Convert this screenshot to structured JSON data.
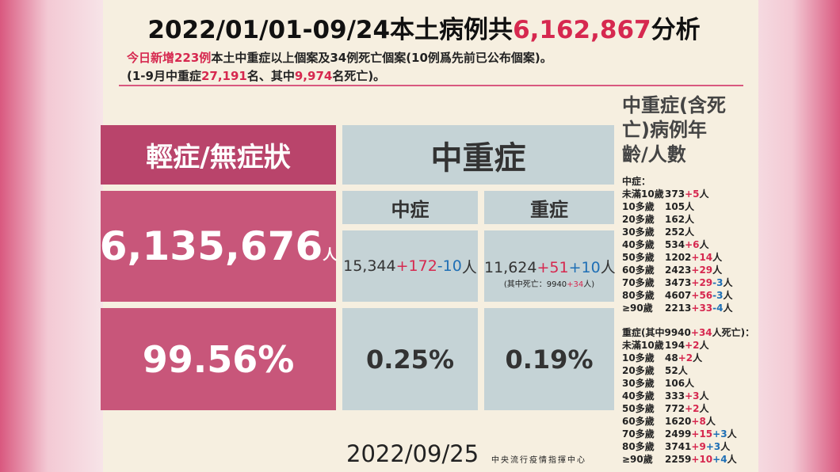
{
  "header": {
    "title": [
      {
        "text": "2022/01/01-09/24本土病例共",
        "color": "#111111"
      },
      {
        "text": "6,162,867",
        "color": "#d6284f"
      },
      {
        "text": "分析",
        "color": "#111111"
      }
    ],
    "line1": [
      {
        "text": "今日新增223例",
        "color": "#d6284f"
      },
      {
        "text": "本土中重症以上個案及34例死亡個案(10例爲先前已公布個案)。",
        "color": "#222222"
      }
    ],
    "line2": [
      {
        "text": "(1-9月中重症",
        "color": "#222222"
      },
      {
        "text": "27,191",
        "color": "#d6284f"
      },
      {
        "text": "名、其中",
        "color": "#222222"
      },
      {
        "text": "9,974",
        "color": "#d6284f"
      },
      {
        "text": "名死亡)。",
        "color": "#222222"
      }
    ]
  },
  "mild": {
    "title": "輕症/無症狀",
    "count": "6,135,676",
    "unit": "人",
    "percent": "99.56%"
  },
  "severe": {
    "title": "中重症",
    "moderate": {
      "title": "中症",
      "value": [
        {
          "text": "15,344",
          "color": "#333333"
        },
        {
          "text": "+172",
          "color": "#d6284f"
        },
        {
          "text": "-10",
          "color": "#1f6fb5"
        },
        {
          "text": "人",
          "color": "#333333"
        }
      ],
      "percent": "0.25%"
    },
    "critical": {
      "title": "重症",
      "value": [
        {
          "text": "11,624",
          "color": "#333333"
        },
        {
          "text": "+51",
          "color": "#d6284f"
        },
        {
          "text": "+10",
          "color": "#1f6fb5"
        },
        {
          "text": "人",
          "color": "#333333"
        }
      ],
      "note": [
        {
          "text": "(其中死亡：9940",
          "color": "#222222"
        },
        {
          "text": "+34",
          "color": "#d6284f"
        },
        {
          "text": "人)",
          "color": "#222222"
        }
      ],
      "percent": "0.19%"
    }
  },
  "sidebar": {
    "title": "中重症(含死亡)病例年齡/人數",
    "moderate_heading": [
      {
        "text": "中症：",
        "color": "#222222"
      }
    ],
    "moderate_rows": [
      {
        "age": "未滿10歲",
        "parts": [
          {
            "text": "373",
            "color": "#222222"
          },
          {
            "text": "+5",
            "color": "#d6284f"
          },
          {
            "text": "人",
            "color": "#222222"
          }
        ]
      },
      {
        "age": "10多歲",
        "parts": [
          {
            "text": "105人",
            "color": "#222222"
          }
        ]
      },
      {
        "age": "20多歲",
        "parts": [
          {
            "text": "162人",
            "color": "#222222"
          }
        ]
      },
      {
        "age": "30多歲",
        "parts": [
          {
            "text": "252人",
            "color": "#222222"
          }
        ]
      },
      {
        "age": "40多歲",
        "parts": [
          {
            "text": "534",
            "color": "#222222"
          },
          {
            "text": "+6",
            "color": "#d6284f"
          },
          {
            "text": "人",
            "color": "#222222"
          }
        ]
      },
      {
        "age": "50多歲",
        "parts": [
          {
            "text": "1202",
            "color": "#222222"
          },
          {
            "text": "+14",
            "color": "#d6284f"
          },
          {
            "text": "人",
            "color": "#222222"
          }
        ]
      },
      {
        "age": "60多歲",
        "parts": [
          {
            "text": "2423",
            "color": "#222222"
          },
          {
            "text": "+29",
            "color": "#d6284f"
          },
          {
            "text": "人",
            "color": "#222222"
          }
        ]
      },
      {
        "age": "70多歲",
        "parts": [
          {
            "text": "3473",
            "color": "#222222"
          },
          {
            "text": "+29",
            "color": "#d6284f"
          },
          {
            "text": "-3",
            "color": "#1f6fb5"
          },
          {
            "text": "人",
            "color": "#222222"
          }
        ]
      },
      {
        "age": "80多歲",
        "parts": [
          {
            "text": "4607",
            "color": "#222222"
          },
          {
            "text": "+56",
            "color": "#d6284f"
          },
          {
            "text": "-3",
            "color": "#1f6fb5"
          },
          {
            "text": "人",
            "color": "#222222"
          }
        ]
      },
      {
        "age": "≥90歲",
        "parts": [
          {
            "text": "2213",
            "color": "#222222"
          },
          {
            "text": "+33",
            "color": "#d6284f"
          },
          {
            "text": "-4",
            "color": "#1f6fb5"
          },
          {
            "text": "人",
            "color": "#222222"
          }
        ]
      }
    ],
    "critical_heading": [
      {
        "text": "重症(其中9940",
        "color": "#222222"
      },
      {
        "text": "+34",
        "color": "#d6284f"
      },
      {
        "text": "人死亡)：",
        "color": "#222222"
      }
    ],
    "critical_rows": [
      {
        "age": "未滿10歲",
        "parts": [
          {
            "text": "194",
            "color": "#222222"
          },
          {
            "text": "+2",
            "color": "#d6284f"
          },
          {
            "text": "人",
            "color": "#222222"
          }
        ]
      },
      {
        "age": "10多歲",
        "parts": [
          {
            "text": "48",
            "color": "#222222"
          },
          {
            "text": "+2",
            "color": "#d6284f"
          },
          {
            "text": "人",
            "color": "#222222"
          }
        ]
      },
      {
        "age": "20多歲",
        "parts": [
          {
            "text": "52人",
            "color": "#222222"
          }
        ]
      },
      {
        "age": "30多歲",
        "parts": [
          {
            "text": "106人",
            "color": "#222222"
          }
        ]
      },
      {
        "age": "40多歲",
        "parts": [
          {
            "text": "333",
            "color": "#222222"
          },
          {
            "text": "+3",
            "color": "#d6284f"
          },
          {
            "text": "人",
            "color": "#222222"
          }
        ]
      },
      {
        "age": "50多歲",
        "parts": [
          {
            "text": "772",
            "color": "#222222"
          },
          {
            "text": "+2",
            "color": "#d6284f"
          },
          {
            "text": "人",
            "color": "#222222"
          }
        ]
      },
      {
        "age": "60多歲",
        "parts": [
          {
            "text": "1620",
            "color": "#222222"
          },
          {
            "text": "+8",
            "color": "#d6284f"
          },
          {
            "text": "人",
            "color": "#222222"
          }
        ]
      },
      {
        "age": "70多歲",
        "parts": [
          {
            "text": "2499",
            "color": "#222222"
          },
          {
            "text": "+15",
            "color": "#d6284f"
          },
          {
            "text": "+3",
            "color": "#1f6fb5"
          },
          {
            "text": "人",
            "color": "#222222"
          }
        ]
      },
      {
        "age": "80多歲",
        "parts": [
          {
            "text": "3741",
            "color": "#222222"
          },
          {
            "text": "+9",
            "color": "#d6284f"
          },
          {
            "text": "+3",
            "color": "#1f6fb5"
          },
          {
            "text": "人",
            "color": "#222222"
          }
        ]
      },
      {
        "age": "≥90歲",
        "parts": [
          {
            "text": "2259",
            "color": "#222222"
          },
          {
            "text": "+10",
            "color": "#d6284f"
          },
          {
            "text": "+4",
            "color": "#1f6fb5"
          },
          {
            "text": "人",
            "color": "#222222"
          }
        ]
      }
    ]
  },
  "footer": {
    "date": "2022/09/25",
    "source": "中央流行疫情指揮中心"
  }
}
